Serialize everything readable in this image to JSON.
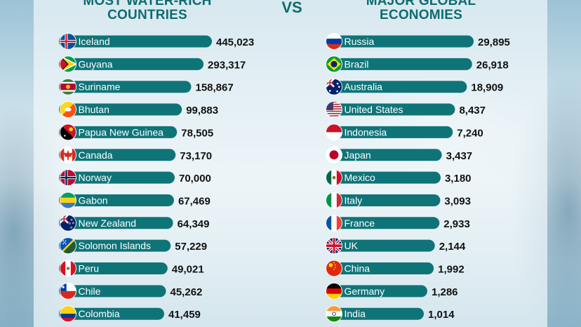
{
  "headings": {
    "left": [
      "MOST WATER-RICH",
      "COUNTRIES"
    ],
    "vs": "VS",
    "right": [
      "MAJOR GLOBAL",
      "ECONOMIES"
    ]
  },
  "colors": {
    "bar": "#0f7478",
    "label": "#ffffff",
    "value": "#111111",
    "heading": "#0f6b6e"
  },
  "chart_data": [
    {
      "type": "bar",
      "orientation": "horizontal",
      "categories": [
        "Iceland",
        "Guyana",
        "Suriname",
        "Bhutan",
        "Papua New Guinea",
        "Canada",
        "Norway",
        "Gabon",
        "New Zealand",
        "Solomon Islands",
        "Peru",
        "Chile",
        "Colombia"
      ],
      "values": [
        445023,
        293317,
        158867,
        99883,
        78505,
        73170,
        70000,
        67469,
        64349,
        57229,
        49021,
        45262,
        41459
      ],
      "value_labels": [
        "445,023",
        "293,317",
        "158,867",
        "99,883",
        "78,505",
        "73,170",
        "70,000",
        "67,469",
        "64,349",
        "57,229",
        "49,021",
        "45,262",
        "41,459"
      ],
      "flags": [
        "iceland-flag",
        "guyana-flag",
        "suriname-flag",
        "bhutan-flag",
        "papua-new-guinea-flag",
        "canada-flag",
        "norway-flag",
        "gabon-flag",
        "new-zealand-flag",
        "solomon-islands-flag",
        "peru-flag",
        "chile-flag",
        "colombia-flag"
      ],
      "title": "MOST WATER-RICH COUNTRIES"
    },
    {
      "type": "bar",
      "orientation": "horizontal",
      "categories": [
        "Russia",
        "Brazil",
        "Australia",
        "United States",
        "Indonesia",
        "Japan",
        "Mexico",
        "Italy",
        "France",
        "UK",
        "China",
        "Germany",
        "India"
      ],
      "values": [
        29895,
        26918,
        18909,
        8437,
        7240,
        3437,
        3180,
        3093,
        2933,
        2144,
        1992,
        1286,
        1014
      ],
      "value_labels": [
        "29,895",
        "26,918",
        "18,909",
        "8,437",
        "7,240",
        "3,437",
        "3,180",
        "3,093",
        "2,933",
        "2,144",
        "1,992",
        "1,286",
        "1,014"
      ],
      "flags": [
        "russia-flag",
        "brazil-flag",
        "australia-flag",
        "united-states-flag",
        "indonesia-flag",
        "japan-flag",
        "mexico-flag",
        "italy-flag",
        "france-flag",
        "uk-flag",
        "china-flag",
        "germany-flag",
        "india-flag"
      ],
      "title": "MAJOR GLOBAL ECONOMIES"
    }
  ]
}
